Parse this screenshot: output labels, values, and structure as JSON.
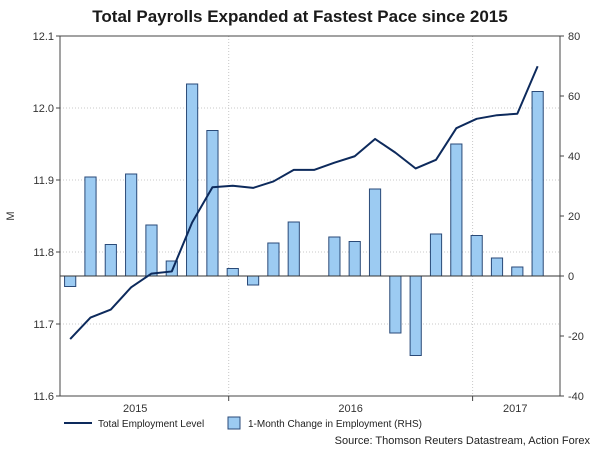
{
  "chart_data": {
    "type": "bar+line",
    "title": "Total Payrolls Expanded at Fastest Pace since 2015",
    "ylabel_left": "M",
    "ylabel_right": "",
    "x_tick_labels": [
      "2015",
      "2016",
      "2017"
    ],
    "y_left": {
      "min": 11.6,
      "max": 12.1,
      "ticks": [
        "11.6",
        "11.7",
        "11.8",
        "11.9",
        "12.0",
        "12.1"
      ]
    },
    "y_right": {
      "min": -40,
      "max": 80,
      "ticks": [
        "-40",
        "-20",
        "0",
        "20",
        "40",
        "60",
        "80"
      ]
    },
    "series": [
      {
        "name": "Total Employment Level",
        "axis": "left",
        "kind": "line",
        "color": "#0d2a5c",
        "values": [
          11.679,
          11.709,
          11.72,
          11.751,
          11.77,
          11.773,
          11.841,
          11.89,
          11.892,
          11.889,
          11.898,
          11.914,
          11.914,
          11.924,
          11.933,
          11.957,
          11.938,
          11.916,
          11.928,
          11.972,
          11.985,
          11.99,
          11.992,
          12.058
        ]
      },
      {
        "name": "1-Month Change in Employment (RHS)",
        "axis": "right",
        "kind": "bar",
        "color": "#9ccbf2",
        "values": [
          -3.5,
          33.0,
          10.5,
          34.0,
          17.0,
          5.0,
          64.0,
          48.5,
          2.5,
          -3.0,
          11.0,
          18.0,
          0.0,
          13.0,
          11.5,
          29.0,
          -19.0,
          -26.5,
          14.0,
          44.0,
          13.5,
          6.0,
          3.0,
          61.5
        ]
      }
    ],
    "legend_position": "bottom",
    "source": "Source: Thomson Reuters Datastream, Action Forex"
  }
}
